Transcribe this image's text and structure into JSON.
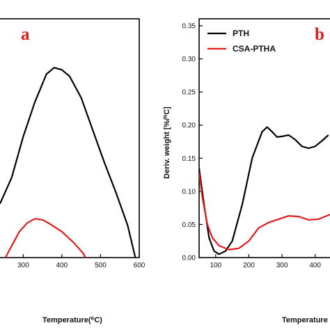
{
  "chart_data": [
    {
      "type": "line",
      "panel_label": "a",
      "xlabel": "Temperature(⁰C)",
      "xlim": [
        240,
        600
      ],
      "ylim": [
        0,
        1
      ],
      "x_ticks": [
        "300",
        "400",
        "500",
        "600"
      ],
      "x_tick_values": [
        300,
        400,
        500,
        600
      ],
      "series": [
        {
          "color": "#000000",
          "points": [
            [
              240,
              0.25
            ],
            [
              270,
              0.37
            ],
            [
              300,
              0.56
            ],
            [
              330,
              0.72
            ],
            [
              360,
              0.85
            ],
            [
              380,
              0.88
            ],
            [
              400,
              0.87
            ],
            [
              420,
              0.84
            ],
            [
              450,
              0.74
            ],
            [
              480,
              0.59
            ],
            [
              510,
              0.44
            ],
            [
              540,
              0.3
            ],
            [
              570,
              0.15
            ],
            [
              590,
              0.0
            ]
          ]
        },
        {
          "color": "#e21b1b",
          "points": [
            [
              240,
              -0.05
            ],
            [
              260,
              0.02
            ],
            [
              290,
              0.12
            ],
            [
              310,
              0.16
            ],
            [
              330,
              0.18
            ],
            [
              350,
              0.175
            ],
            [
              370,
              0.155
            ],
            [
              400,
              0.12
            ],
            [
              430,
              0.07
            ],
            [
              455,
              0.02
            ],
            [
              470,
              -0.03
            ]
          ]
        }
      ]
    },
    {
      "type": "line",
      "panel_label": "b",
      "ylabel": "Deriv. weight [%/⁰C]",
      "xlabel": "Temperature",
      "xlim": [
        50,
        470
      ],
      "ylim": [
        0,
        0.35
      ],
      "y_ticks": [
        "0.00",
        "0.05",
        "0.10",
        "0.15",
        "0.20",
        "0.25",
        "0.30",
        "0.35"
      ],
      "y_tick_values": [
        0,
        0.05,
        0.1,
        0.15,
        0.2,
        0.25,
        0.3,
        0.35
      ],
      "x_ticks": [
        "100",
        "200",
        "300",
        "400"
      ],
      "x_tick_values": [
        100,
        200,
        300,
        400
      ],
      "legend_position": "top-left",
      "series": [
        {
          "name": "PTH",
          "color": "#000000",
          "points": [
            [
              50,
              0.135
            ],
            [
              65,
              0.08
            ],
            [
              80,
              0.03
            ],
            [
              95,
              0.01
            ],
            [
              110,
              0.005
            ],
            [
              130,
              0.01
            ],
            [
              150,
              0.025
            ],
            [
              180,
              0.08
            ],
            [
              210,
              0.15
            ],
            [
              240,
              0.19
            ],
            [
              255,
              0.197
            ],
            [
              270,
              0.19
            ],
            [
              285,
              0.182
            ],
            [
              300,
              0.183
            ],
            [
              320,
              0.185
            ],
            [
              340,
              0.178
            ],
            [
              360,
              0.168
            ],
            [
              380,
              0.165
            ],
            [
              400,
              0.168
            ],
            [
              420,
              0.176
            ],
            [
              440,
              0.185
            ]
          ]
        },
        {
          "name": "CSA-PTHA",
          "color": "#e21b1b",
          "points": [
            [
              50,
              0.128
            ],
            [
              60,
              0.09
            ],
            [
              75,
              0.05
            ],
            [
              90,
              0.03
            ],
            [
              110,
              0.018
            ],
            [
              140,
              0.012
            ],
            [
              170,
              0.014
            ],
            [
              200,
              0.025
            ],
            [
              230,
              0.045
            ],
            [
              260,
              0.053
            ],
            [
              290,
              0.058
            ],
            [
              320,
              0.063
            ],
            [
              350,
              0.062
            ],
            [
              380,
              0.057
            ],
            [
              410,
              0.058
            ],
            [
              440,
              0.064
            ],
            [
              460,
              0.068
            ]
          ]
        }
      ]
    }
  ]
}
